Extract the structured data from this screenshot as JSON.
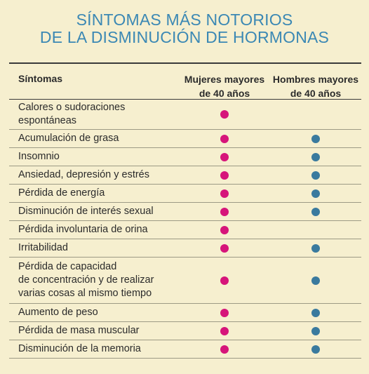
{
  "title": {
    "line1": "SÍNTOMAS MÁS NOTORIOS",
    "line2": "DE LA DISMINUCIÓN DE HORMONAS"
  },
  "header": {
    "col1": "Síntomas",
    "col2_line1": "Mujeres mayores",
    "col2_line2": "de 40 años",
    "col3_line1": "Hombres mayores",
    "col3_line2": "de 40 años"
  },
  "colors": {
    "title": "#3b88b4",
    "women_dot": "#d6157a",
    "men_dot": "#3a7a9e",
    "background": "#f6efcf"
  },
  "rows": [
    {
      "lines": [
        "Calores o sudoraciones",
        "espontáneas"
      ],
      "women": true,
      "men": false
    },
    {
      "lines": [
        "Acumulación de grasa"
      ],
      "women": true,
      "men": true
    },
    {
      "lines": [
        "Insomnio"
      ],
      "women": true,
      "men": true
    },
    {
      "lines": [
        "Ansiedad, depresión y estrés"
      ],
      "women": true,
      "men": true
    },
    {
      "lines": [
        "Pérdida de energía"
      ],
      "women": true,
      "men": true
    },
    {
      "lines": [
        "Disminución de interés sexual"
      ],
      "women": true,
      "men": true
    },
    {
      "lines": [
        "Pérdida involuntaria de orina"
      ],
      "women": true,
      "men": false
    },
    {
      "lines": [
        "Irritabilidad"
      ],
      "women": true,
      "men": true
    },
    {
      "lines": [
        "Pérdida de capacidad",
        "de concentración y de realizar",
        "varias cosas al mismo tiempo"
      ],
      "women": true,
      "men": true
    },
    {
      "lines": [
        "Aumento de peso"
      ],
      "women": true,
      "men": true
    },
    {
      "lines": [
        "Pérdida de masa muscular"
      ],
      "women": true,
      "men": true
    },
    {
      "lines": [
        "Disminución de la memoria"
      ],
      "women": true,
      "men": true
    }
  ]
}
